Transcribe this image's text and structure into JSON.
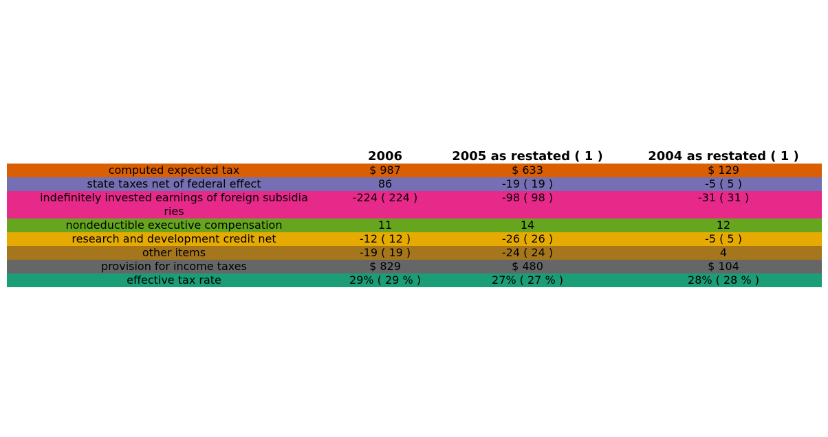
{
  "chart_data": {
    "type": "table",
    "columns": [
      "",
      "2006",
      "2005 as restated ( 1 )",
      "2004 as restated ( 1 )"
    ],
    "rows": [
      {
        "label": [
          "computed expected tax"
        ],
        "values": [
          "$ 987",
          "$ 633",
          "$ 129"
        ],
        "color": "#d95f02"
      },
      {
        "label": [
          "state taxes net of federal effect"
        ],
        "values": [
          "86",
          "-19 ( 19 )",
          "-5 ( 5 )"
        ],
        "color": "#7570b3"
      },
      {
        "label": [
          "indefinitely invested earnings of foreign subsidia",
          "ries"
        ],
        "values": [
          "-224 ( 224 )",
          "-98 ( 98 )",
          "-31 ( 31 )"
        ],
        "color": "#e7298a"
      },
      {
        "label": [
          "nondeductible executive compensation"
        ],
        "values": [
          "11",
          "14",
          "12"
        ],
        "color": "#66a61e"
      },
      {
        "label": [
          "research and development credit net"
        ],
        "values": [
          "-12 ( 12 )",
          "-26 ( 26 )",
          "-5 ( 5 )"
        ],
        "color": "#e6ab02"
      },
      {
        "label": [
          "other items"
        ],
        "values": [
          "-19 ( 19 )",
          "-24 ( 24 )",
          "4"
        ],
        "color": "#a6761d"
      },
      {
        "label": [
          "provision for income taxes"
        ],
        "values": [
          "$ 829",
          "$ 480",
          "$ 104"
        ],
        "color": "#666666"
      },
      {
        "label": [
          "effective tax rate"
        ],
        "values": [
          "29% ( 29 % )",
          "27% ( 27 % )",
          "28% ( 28 % )"
        ],
        "color": "#1b9e77"
      }
    ]
  }
}
